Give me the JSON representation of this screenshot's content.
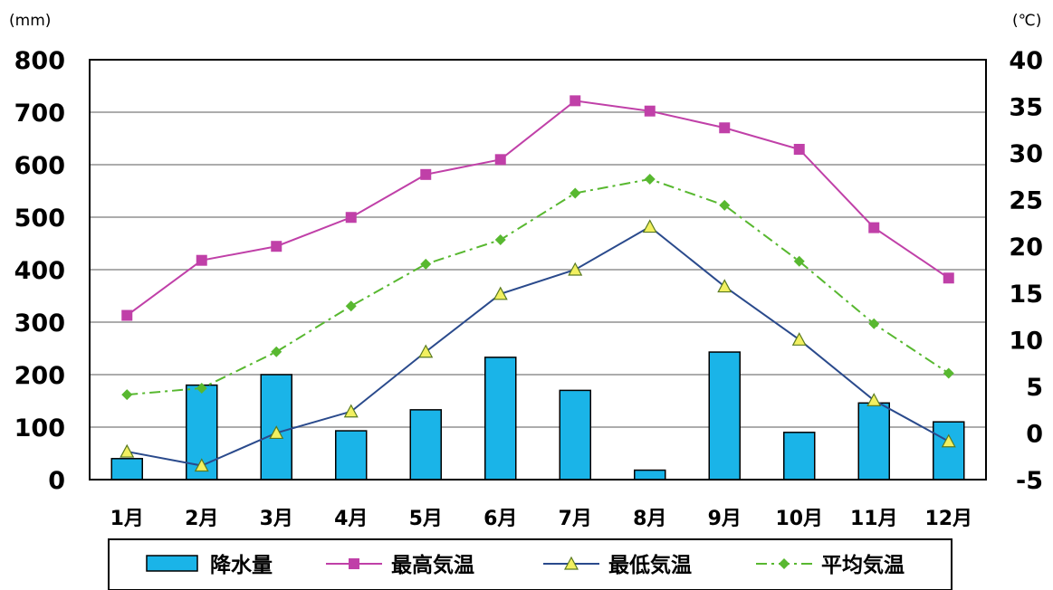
{
  "chart_data": {
    "type": "bar+line",
    "categories": [
      "1月",
      "2月",
      "3月",
      "4月",
      "5月",
      "6月",
      "7月",
      "8月",
      "9月",
      "10月",
      "11月",
      "12月"
    ],
    "left_axis": {
      "unit": "(mm)",
      "ylim": [
        0,
        800
      ],
      "ticks": [
        "0",
        "100",
        "200",
        "300",
        "400",
        "500",
        "600",
        "700",
        "800"
      ]
    },
    "right_axis": {
      "unit": "(℃)",
      "ylim": [
        -5,
        40
      ],
      "ticks": [
        "-5",
        "0",
        "5",
        "10",
        "15",
        "20",
        "25",
        "30",
        "35",
        "40"
      ]
    },
    "bars": {
      "name": "降水量",
      "axis": "left",
      "color": "#1ab4e8",
      "values": [
        40,
        180,
        200,
        93,
        133,
        233,
        170,
        18,
        243,
        90,
        146,
        110
      ]
    },
    "series": [
      {
        "name": "最高気温",
        "axis": "right",
        "color": "#c040a8",
        "marker": "square",
        "style": "solid",
        "values": [
          12.6,
          18.5,
          20.0,
          23.1,
          27.7,
          29.3,
          35.6,
          34.5,
          32.7,
          30.4,
          22.0,
          16.6
        ]
      },
      {
        "name": "最低気温",
        "axis": "right",
        "color": "#2a4a8c",
        "marker": "triangle",
        "style": "solid",
        "values": [
          -2.0,
          -3.5,
          0.0,
          2.3,
          8.7,
          14.9,
          17.5,
          22.1,
          15.7,
          10.0,
          3.5,
          -0.9
        ]
      },
      {
        "name": "平均気温",
        "axis": "right",
        "color": "#58b830",
        "marker": "diamond",
        "style": "dashdot",
        "values": [
          4.1,
          4.8,
          8.7,
          13.6,
          18.1,
          20.7,
          25.7,
          27.2,
          24.4,
          18.4,
          11.7,
          6.4
        ]
      }
    ],
    "grid": true,
    "legend": "bottom"
  }
}
